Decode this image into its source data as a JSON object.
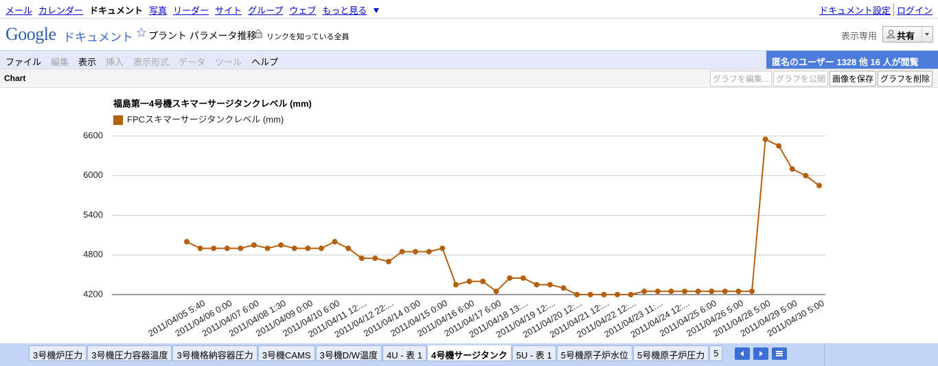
{
  "nav": {
    "links": [
      "メール",
      "カレンダー",
      "ドキュメント",
      "写真",
      "リーダー",
      "サイト",
      "グループ",
      "ウェブ",
      "もっと見る"
    ],
    "active": 2,
    "right": [
      "ドキュメント設定",
      "ログイン"
    ]
  },
  "header": {
    "logo": "Google",
    "product": "ドキュメント",
    "doc_title": "プラント パラメータ推移",
    "sharing": "リンクを知っている全員",
    "mode": "表示専用",
    "share_button": "共有"
  },
  "menu": {
    "items": [
      "ファイル",
      "編集",
      "表示",
      "挿入",
      "表示形式",
      "データ",
      "ツール",
      "ヘルプ"
    ],
    "enabled": [
      true,
      false,
      true,
      false,
      false,
      false,
      false,
      true
    ],
    "viewers": "匿名のユーザー 1328 他 16 人が閲覧"
  },
  "chart_toolbar": {
    "label": "Chart",
    "buttons": [
      "グラフを編集...",
      "グラフを公開",
      "画像を保存",
      "グラフを削除"
    ],
    "enabled": [
      false,
      false,
      true,
      true
    ]
  },
  "chart_data": {
    "type": "line",
    "title": "福島第一4号機スキマーサージタンクレベル (mm)",
    "categories": [
      "2011/04/05 5:40",
      null,
      "2011/04/06 0:00",
      null,
      "2011/04/07 6:00",
      null,
      "2011/04/08 1:30",
      null,
      "2011/04/09 0:00",
      null,
      "2011/04/10 6:00",
      null,
      "2011/04/11 12:...",
      null,
      "2011/04/12 22:...",
      null,
      "2011/04/14 0:00",
      null,
      "2011/04/15 0:00",
      null,
      "2011/04/16 6:00",
      null,
      "2011/04/17 6:00",
      null,
      "2011/04/18 13:...",
      null,
      "2011/04/19 12:...",
      null,
      "2011/04/20 12:...",
      null,
      "2011/04/21 12:...",
      null,
      "2011/04/22 12:...",
      null,
      "2011/04/23 11:...",
      null,
      "2011/04/24 12:...",
      null,
      "2011/04/25 6:00",
      null,
      "2011/04/26 5:00",
      null,
      "2011/04/28 5:00",
      null,
      "2011/04/29 5:00",
      null,
      "2011/04/30 5:00",
      null
    ],
    "series": [
      {
        "name": "FPCスキマーサージタンクレベル (mm)",
        "color": "#b5600f",
        "values": [
          5000,
          4900,
          4900,
          4900,
          4900,
          4950,
          4900,
          4950,
          4900,
          4900,
          4900,
          5000,
          4900,
          4750,
          4750,
          4700,
          4850,
          4850,
          4850,
          4900,
          4350,
          4400,
          4400,
          4250,
          4450,
          4450,
          4350,
          4350,
          4300,
          4200,
          4200,
          4200,
          4200,
          4200,
          4250,
          4250,
          4250,
          4250,
          4250,
          4250,
          4250,
          4250,
          4250,
          6550,
          6450,
          6100,
          6000,
          5850
        ]
      }
    ],
    "ylim": [
      4200,
      6600
    ],
    "yticks": [
      4200,
      4800,
      5400,
      6000,
      6600
    ],
    "grid": true,
    "legend": "top-left"
  },
  "tabs": {
    "items": [
      "3号機炉圧力",
      "3号機圧力容器温度",
      "3号機格納容器圧力",
      "3号機CAMS",
      "3号機D/W温度",
      "4U - 表 1",
      "4号機サージタンク",
      "5U - 表 1",
      "5号機原子炉水位",
      "5号機原子炉圧力",
      "5"
    ],
    "active": 6
  }
}
